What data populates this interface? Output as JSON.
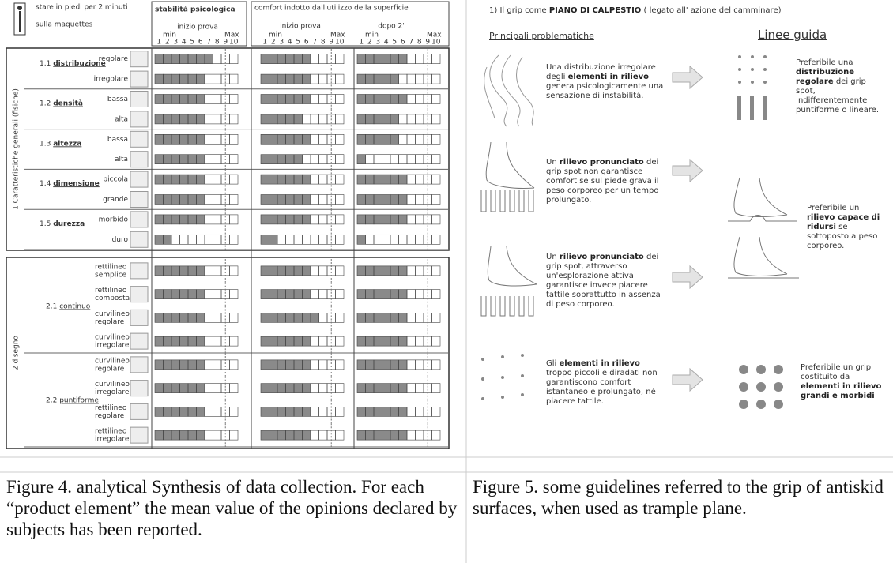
{
  "figure4": {
    "header": {
      "instruction": [
        "stare in piedi per 2 minuti",
        "sulla maquettes"
      ],
      "col_stability": "stabilità psicologica",
      "col_comfort": "comfort indotto  dall'utilizzo della superficie",
      "sub_start": "inizio prova",
      "sub_after": "dopo 2'",
      "min": "min",
      "max": "Max",
      "scale": [
        1,
        2,
        3,
        4,
        5,
        6,
        7,
        8,
        9,
        10
      ]
    },
    "group_labels": [
      "1 Caratteristiche generali (fisiche)",
      "2 disegno"
    ],
    "sections": [
      {
        "num": "1.1",
        "name": "distribuzione",
        "rows": [
          {
            "label": [
              "regolare"
            ],
            "values": [
              7,
              6,
              6
            ]
          },
          {
            "label": [
              "irregolare"
            ],
            "values": [
              6,
              6,
              5
            ]
          }
        ]
      },
      {
        "num": "1.2",
        "name": "densità",
        "rows": [
          {
            "label": [
              "bassa"
            ],
            "values": [
              6,
              6,
              6
            ]
          },
          {
            "label": [
              "alta"
            ],
            "values": [
              6,
              5,
              5
            ]
          }
        ]
      },
      {
        "num": "1.3",
        "name": "altezza",
        "rows": [
          {
            "label": [
              "bassa"
            ],
            "values": [
              6,
              6,
              5
            ]
          },
          {
            "label": [
              "alta"
            ],
            "values": [
              6,
              5,
              1
            ]
          }
        ]
      },
      {
        "num": "1.4",
        "name": "dimensione",
        "rows": [
          {
            "label": [
              "piccola"
            ],
            "values": [
              6,
              6,
              6
            ]
          },
          {
            "label": [
              "grande"
            ],
            "values": [
              6,
              6,
              6
            ]
          }
        ]
      },
      {
        "num": "1.5",
        "name": "durezza",
        "rows": [
          {
            "label": [
              "morbido"
            ],
            "values": [
              6,
              6,
              6
            ]
          },
          {
            "label": [
              "duro"
            ],
            "values": [
              2,
              2,
              1
            ]
          }
        ]
      },
      {
        "num": "2.1",
        "name": "continuo",
        "rows": [
          {
            "label": [
              "rettilineo",
              "semplice"
            ],
            "values": [
              6,
              6,
              6
            ]
          },
          {
            "label": [
              "rettilineo",
              "composta"
            ],
            "values": [
              6,
              6,
              6
            ]
          },
          {
            "label": [
              "curvilineo",
              "regolare"
            ],
            "values": [
              6,
              7,
              6
            ]
          },
          {
            "label": [
              "curvilineo",
              "irregolare"
            ],
            "values": [
              6,
              6,
              6
            ]
          }
        ]
      },
      {
        "num": "2.2",
        "name": "puntiforme",
        "rows": [
          {
            "label": [
              "curvilineo",
              "regolare"
            ],
            "values": [
              6,
              6,
              6
            ]
          },
          {
            "label": [
              "curvilineo",
              "irregolare"
            ],
            "values": [
              6,
              6,
              6
            ]
          },
          {
            "label": [
              "rettilineo",
              "regolare"
            ],
            "values": [
              6,
              6,
              6
            ]
          },
          {
            "label": [
              "rettilineo",
              "irregolare"
            ],
            "values": [
              6,
              6,
              6
            ]
          }
        ]
      }
    ]
  },
  "figure5": {
    "title": [
      "1) Il grip come ",
      "PIANO DI CALPESTIO",
      " ( legato all' azione del camminare)"
    ],
    "problems_heading": "Principali problematiche",
    "guidelines_heading": "Linee guida",
    "problems": [
      [
        "Una distribuzione irregolare degli ",
        "elementi in rilievo",
        " genera psicologicamente una sensazione di instabilità."
      ],
      [
        "Un ",
        "rilievo pronunciato",
        " dei grip spot non garantisce comfort se sul piede grava il peso corporeo per un tempo prolungato."
      ],
      [
        "Un ",
        "rilievo pronunciato",
        " dei grip spot, attraverso un'esplorazione attiva garantisce invece piacere tattile soprattutto in assenza di peso corporeo."
      ],
      [
        "Gli ",
        "elementi in rilievo",
        " troppo piccoli e diradati non garantiscono comfort istantaneo e prolungato, né piacere tattile."
      ]
    ],
    "guidelines": [
      [
        "Preferibile una ",
        "distribuzione regolare",
        " dei grip spot,"
      ],
      [
        "Indifferentemente puntiforme o lineare."
      ],
      [
        "Preferibile un ",
        "rilievo capace di ridursi",
        " se sottoposto a peso corporeo."
      ],
      [
        "Preferibile un grip costituito da ",
        "elementi in rilievo grandi e morbidi"
      ]
    ]
  },
  "captions": [
    "Figure 4. analytical Synthesis of data collection. For each “product element” the mean value of the opinions declared by subjects has been reported.",
    "Figure 5. some guidelines referred to the grip of antiskid surfaces, when used as trample  plane."
  ]
}
